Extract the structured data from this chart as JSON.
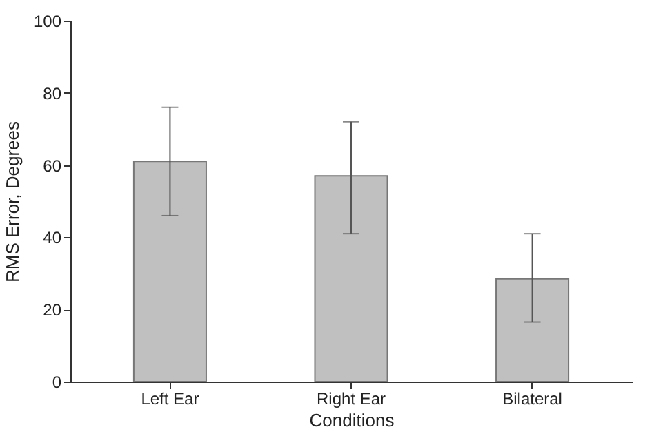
{
  "chart_data": {
    "type": "bar",
    "xlabel": "Conditions",
    "ylabel": "RMS Error, Degrees",
    "categories": [
      "Left Ear",
      "Right Ear",
      "Bilateral"
    ],
    "values": [
      61,
      57,
      28.5
    ],
    "color": "#c0c0c0",
    "errors": [
      [
        46,
        76
      ],
      [
        41,
        72
      ],
      [
        16.5,
        41
      ]
    ],
    "ylim": [
      0,
      100
    ],
    "yticks": [
      0,
      20,
      40,
      60,
      80,
      100
    ],
    "grid": false
  }
}
